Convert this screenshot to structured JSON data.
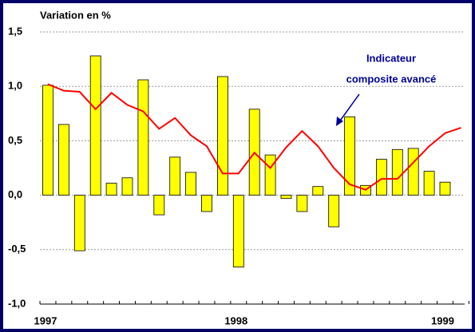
{
  "chart_data": {
    "type": "bar",
    "title": "Variation en %",
    "annotation": "Indicateur composite avancé",
    "categories": [
      "1997",
      null,
      null,
      null,
      null,
      null,
      null,
      null,
      null,
      null,
      null,
      null,
      "1998",
      null,
      null,
      null,
      null,
      null,
      null,
      null,
      null,
      null,
      null,
      null,
      null,
      "1999",
      null
    ],
    "series": [
      {
        "type": "bar",
        "color": "#ffff00",
        "values": [
          1.01,
          0.65,
          -0.51,
          1.28,
          0.11,
          0.16,
          1.06,
          -0.18,
          0.35,
          0.21,
          -0.15,
          1.09,
          -0.66,
          0.79,
          0.37,
          -0.03,
          -0.15,
          0.08,
          -0.29,
          0.72,
          0.09,
          0.33,
          0.42,
          0.43,
          0.22,
          0.12,
          null
        ]
      },
      {
        "type": "line",
        "color": "#ff0000",
        "values": [
          1.02,
          0.96,
          0.95,
          0.79,
          0.94,
          0.83,
          0.77,
          0.61,
          0.71,
          0.55,
          0.45,
          0.2,
          0.2,
          0.39,
          0.25,
          0.44,
          0.59,
          0.45,
          0.25,
          0.1,
          0.05,
          0.15,
          0.15,
          0.3,
          0.45,
          0.57,
          0.62
        ]
      }
    ],
    "ylim": [
      -1.0,
      1.5
    ],
    "yticks": [
      {
        "value": -1.0,
        "label": "-1,0"
      },
      {
        "value": -0.5,
        "label": "-0,5"
      },
      {
        "value": 0,
        "label": "0,0"
      },
      {
        "value": 0.5,
        "label": "0,5"
      },
      {
        "value": 1.0,
        "label": "1,0"
      },
      {
        "value": 1.5,
        "label": "1,5"
      }
    ],
    "grid": true
  }
}
